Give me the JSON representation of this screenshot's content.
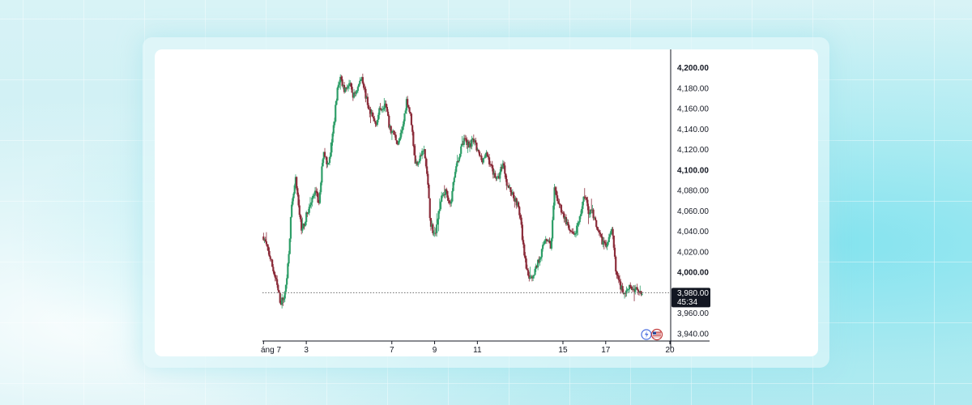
{
  "colors": {
    "up": "#2e9e68",
    "down": "#8b2c3a",
    "axis": "#131722",
    "price_tag_bg": "#131722",
    "price_line": "#6b6b6b"
  },
  "chart_data": {
    "type": "candlestick",
    "x_ticks": [
      {
        "day": 1,
        "label": "áng 7"
      },
      {
        "day": 3,
        "label": "3"
      },
      {
        "day": 7,
        "label": "7"
      },
      {
        "day": 9,
        "label": "9"
      },
      {
        "day": 11,
        "label": "11"
      },
      {
        "day": 15,
        "label": "15"
      },
      {
        "day": 17,
        "label": "17"
      },
      {
        "day": 20,
        "label": "20"
      }
    ],
    "y_ticks": [
      {
        "value": 4200,
        "label": "4,200.00",
        "bold": true
      },
      {
        "value": 4180,
        "label": "4,180.00",
        "bold": false
      },
      {
        "value": 4160,
        "label": "4,160.00",
        "bold": false
      },
      {
        "value": 4140,
        "label": "4,140.00",
        "bold": false
      },
      {
        "value": 4120,
        "label": "4,120.00",
        "bold": false
      },
      {
        "value": 4100,
        "label": "4,100.00",
        "bold": true
      },
      {
        "value": 4080,
        "label": "4,080.00",
        "bold": false
      },
      {
        "value": 4060,
        "label": "4,060.00",
        "bold": false
      },
      {
        "value": 4040,
        "label": "4,040.00",
        "bold": false
      },
      {
        "value": 4020,
        "label": "4,020.00",
        "bold": false
      },
      {
        "value": 4000,
        "label": "4,000.00",
        "bold": true
      },
      {
        "value": 3960,
        "label": "3,960.00",
        "bold": false
      },
      {
        "value": 3940,
        "label": "3,940.00",
        "bold": false
      }
    ],
    "ylim": [
      3932,
      4210
    ],
    "xlim": [
      0.95,
      20
    ],
    "current_price": {
      "value": 3980,
      "label": "3,980.00",
      "countdown": "45:34"
    },
    "close_path": [
      [
        1.0,
        4035
      ],
      [
        1.3,
        4015
      ],
      [
        1.6,
        3990
      ],
      [
        1.8,
        3970
      ],
      [
        2.0,
        3978
      ],
      [
        2.15,
        4010
      ],
      [
        2.3,
        4060
      ],
      [
        2.5,
        4090
      ],
      [
        2.65,
        4062
      ],
      [
        2.8,
        4040
      ],
      [
        3.0,
        4055
      ],
      [
        3.25,
        4070
      ],
      [
        3.45,
        4080
      ],
      [
        3.6,
        4065
      ],
      [
        3.8,
        4120
      ],
      [
        4.0,
        4105
      ],
      [
        4.15,
        4120
      ],
      [
        4.3,
        4145
      ],
      [
        4.45,
        4180
      ],
      [
        4.6,
        4190
      ],
      [
        4.8,
        4178
      ],
      [
        5.0,
        4185
      ],
      [
        5.2,
        4172
      ],
      [
        5.4,
        4180
      ],
      [
        5.6,
        4192
      ],
      [
        5.8,
        4170
      ],
      [
        6.0,
        4155
      ],
      [
        6.25,
        4145
      ],
      [
        6.45,
        4160
      ],
      [
        6.7,
        4165
      ],
      [
        6.9,
        4140
      ],
      [
        7.1,
        4135
      ],
      [
        7.3,
        4125
      ],
      [
        7.5,
        4140
      ],
      [
        7.7,
        4170
      ],
      [
        7.9,
        4150
      ],
      [
        8.1,
        4105
      ],
      [
        8.3,
        4112
      ],
      [
        8.5,
        4120
      ],
      [
        8.65,
        4095
      ],
      [
        8.8,
        4050
      ],
      [
        9.0,
        4035
      ],
      [
        9.2,
        4060
      ],
      [
        9.35,
        4075
      ],
      [
        9.55,
        4080
      ],
      [
        9.75,
        4065
      ],
      [
        9.95,
        4100
      ],
      [
        10.15,
        4115
      ],
      [
        10.4,
        4130
      ],
      [
        10.6,
        4125
      ],
      [
        10.85,
        4128
      ],
      [
        11.0,
        4118
      ],
      [
        11.2,
        4110
      ],
      [
        11.45,
        4115
      ],
      [
        11.7,
        4100
      ],
      [
        11.95,
        4090
      ],
      [
        12.2,
        4108
      ],
      [
        12.4,
        4085
      ],
      [
        12.6,
        4078
      ],
      [
        12.85,
        4068
      ],
      [
        13.0,
        4055
      ],
      [
        13.15,
        4025
      ],
      [
        13.3,
        4000
      ],
      [
        13.5,
        3993
      ],
      [
        13.75,
        4005
      ],
      [
        14.0,
        4020
      ],
      [
        14.2,
        4035
      ],
      [
        14.45,
        4025
      ],
      [
        14.6,
        4080
      ],
      [
        14.85,
        4065
      ],
      [
        15.05,
        4055
      ],
      [
        15.3,
        4040
      ],
      [
        15.5,
        4035
      ],
      [
        15.75,
        4048
      ],
      [
        16.0,
        4078
      ],
      [
        16.2,
        4060
      ],
      [
        16.4,
        4058
      ],
      [
        16.6,
        4040
      ],
      [
        16.85,
        4030
      ],
      [
        17.05,
        4028
      ],
      [
        17.3,
        4040
      ],
      [
        17.5,
        3998
      ],
      [
        17.7,
        3985
      ],
      [
        17.9,
        3979
      ],
      [
        18.1,
        3988
      ],
      [
        18.3,
        3982
      ],
      [
        18.5,
        3984
      ],
      [
        18.7,
        3980
      ]
    ]
  }
}
